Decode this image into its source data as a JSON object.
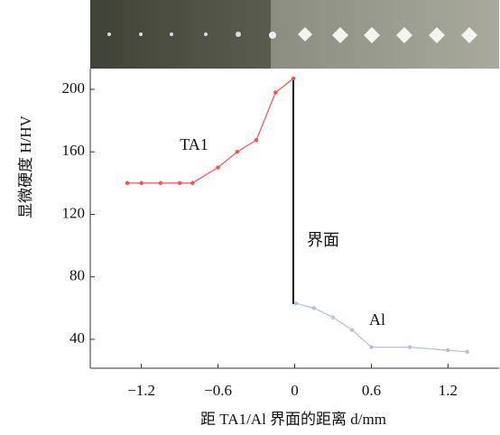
{
  "chart_data": {
    "type": "line",
    "ylabel": "显微硬度 H/HV",
    "xlabel": "距 TA1/Al 界面的距离 d/mm",
    "annotations": [
      "TA1",
      "界面",
      "Al"
    ],
    "xlim": [
      -1.6,
      1.6
    ],
    "ylim": [
      21.5,
      213.3
    ],
    "xticks": [
      {
        "value": -1.2,
        "label": "−1.2"
      },
      {
        "value": -0.6,
        "label": "−0.6"
      },
      0,
      0.6,
      1.2
    ],
    "yticks": [
      40,
      80,
      120,
      160,
      200
    ],
    "series": [
      {
        "name": "TA1",
        "color": "#ff4d4d",
        "x": [
          -1.31,
          -1.2,
          -1.05,
          -0.9,
          -0.8,
          -0.6,
          -0.45,
          -0.3,
          -0.15,
          -0.01
        ],
        "values": [
          140,
          140,
          140,
          140,
          140,
          150,
          160,
          167.5,
          198,
          207
        ]
      },
      {
        "name": "Al",
        "color": "#b8bfd8",
        "x": [
          0.01,
          0.15,
          0.3,
          0.45,
          0.6,
          0.9,
          1.2,
          1.35
        ],
        "values": [
          63,
          60,
          54,
          46,
          35,
          35,
          33,
          32
        ]
      }
    ]
  }
}
